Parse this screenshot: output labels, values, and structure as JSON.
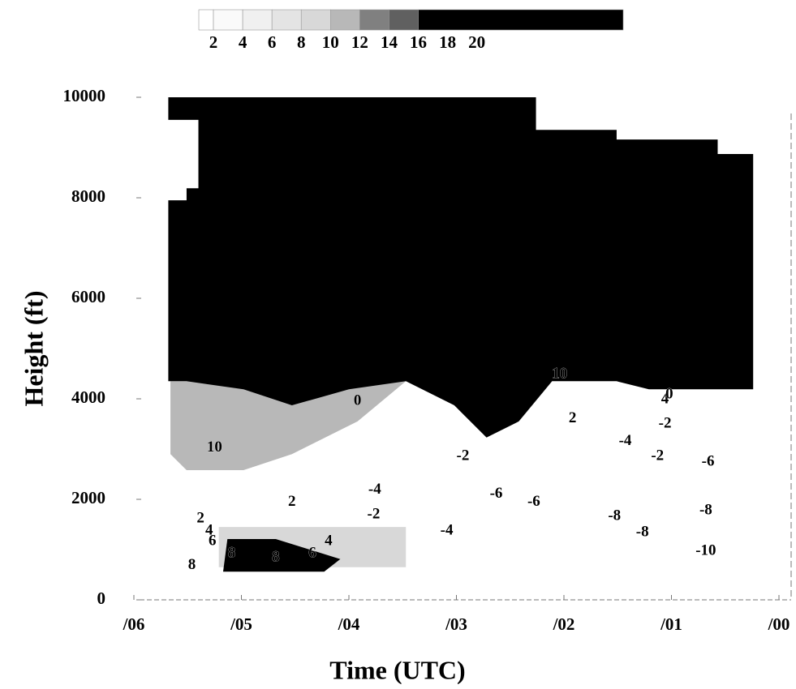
{
  "chart_data": {
    "type": "time-height",
    "x_label": "Time (UTC)",
    "y_label": "Height (ft)",
    "xlim": [
      6,
      0
    ],
    "xticks": [
      {
        "value": 6,
        "label": "/06"
      },
      {
        "value": 5,
        "label": "/05"
      },
      {
        "value": 4,
        "label": "/04"
      },
      {
        "value": 3,
        "label": "/03"
      },
      {
        "value": 2,
        "label": "/02"
      },
      {
        "value": 1,
        "label": "/01"
      },
      {
        "value": 0,
        "label": "/00"
      }
    ],
    "ylim": [
      0,
      10000
    ],
    "yticks": [
      0,
      2000,
      4000,
      6000,
      8000,
      10000
    ],
    "colorbar": {
      "lim": [
        1,
        30
      ],
      "ticks": [
        2,
        4,
        6,
        8,
        10,
        12,
        14,
        16,
        18,
        20
      ],
      "bands": [
        {
          "from": 1,
          "to": 2,
          "color": "#ffffff"
        },
        {
          "from": 2,
          "to": 4,
          "color": "#fafafa"
        },
        {
          "from": 4,
          "to": 6,
          "color": "#f0f0f0"
        },
        {
          "from": 6,
          "to": 8,
          "color": "#e4e4e4"
        },
        {
          "from": 8,
          "to": 10,
          "color": "#d8d8d8"
        },
        {
          "from": 10,
          "to": 12,
          "color": "#b8b8b8"
        },
        {
          "from": 12,
          "to": 14,
          "color": "#808080"
        },
        {
          "from": 14,
          "to": 16,
          "color": "#606060"
        },
        {
          "from": 16,
          "to": 30,
          "color": "#000000"
        }
      ]
    },
    "regions": [
      {
        "value": 10,
        "points": [
          [
            5.66,
            4350
          ],
          [
            3.47,
            4350
          ],
          [
            3.92,
            3550
          ],
          [
            4.53,
            2900
          ],
          [
            4.98,
            2580
          ],
          [
            5.51,
            2580
          ],
          [
            5.66,
            2900
          ]
        ]
      },
      {
        "value": 8,
        "points": [
          [
            5.21,
            1450
          ],
          [
            3.47,
            1450
          ],
          [
            3.47,
            650
          ],
          [
            5.21,
            650
          ]
        ]
      },
      {
        "value": 18,
        "points": [
          [
            5.13,
            1210
          ],
          [
            4.68,
            1210
          ],
          [
            4.08,
            810
          ],
          [
            4.23,
            560
          ],
          [
            5.17,
            560
          ]
        ]
      },
      {
        "value": 20,
        "points": [
          [
            5.68,
            10000
          ],
          [
            2.26,
            10000
          ],
          [
            2.26,
            9350
          ],
          [
            1.51,
            9350
          ],
          [
            1.51,
            9160
          ],
          [
            0.57,
            9160
          ],
          [
            0.57,
            8870
          ],
          [
            0.24,
            8870
          ],
          [
            0.24,
            4190
          ],
          [
            1.21,
            4190
          ],
          [
            1.51,
            4350
          ],
          [
            2.11,
            4350
          ],
          [
            2.42,
            3550
          ],
          [
            2.72,
            3230
          ],
          [
            3.02,
            3870
          ],
          [
            3.47,
            4350
          ],
          [
            4.0,
            4190
          ],
          [
            4.53,
            3870
          ],
          [
            4.98,
            4190
          ],
          [
            5.51,
            4350
          ],
          [
            5.68,
            4350
          ],
          [
            5.68,
            7950
          ],
          [
            5.51,
            7950
          ],
          [
            5.51,
            8190
          ],
          [
            5.4,
            8190
          ],
          [
            5.4,
            9550
          ],
          [
            5.68,
            9550
          ]
        ]
      }
    ],
    "contour_labels": [
      {
        "x": 0.68,
        "y": 968,
        "value": -10
      },
      {
        "x": 1.53,
        "y": 1660,
        "value": -8
      },
      {
        "x": 1.27,
        "y": 1340,
        "value": -8
      },
      {
        "x": 0.68,
        "y": 1770,
        "value": -8
      },
      {
        "x": 2.63,
        "y": 2100,
        "value": -6
      },
      {
        "x": 2.28,
        "y": 1940,
        "value": -6
      },
      {
        "x": 0.66,
        "y": 2740,
        "value": -6
      },
      {
        "x": 3.09,
        "y": 1370,
        "value": -4
      },
      {
        "x": 3.76,
        "y": 2180,
        "value": -4
      },
      {
        "x": 1.43,
        "y": 3150,
        "value": -4
      },
      {
        "x": 3.77,
        "y": 1690,
        "value": -2
      },
      {
        "x": 2.94,
        "y": 2850,
        "value": -2
      },
      {
        "x": 1.13,
        "y": 2850,
        "value": -2
      },
      {
        "x": 1.06,
        "y": 3500,
        "value": -2
      },
      {
        "x": 4.53,
        "y": 1940,
        "value": 2
      },
      {
        "x": 1.92,
        "y": 3600,
        "value": 2
      },
      {
        "x": 5.38,
        "y": 1610,
        "value": 2
      },
      {
        "x": 5.3,
        "y": 1370,
        "value": 4
      },
      {
        "x": 1.06,
        "y": 3980,
        "value": 4
      },
      {
        "x": 4.19,
        "y": 1160,
        "value": 4
      },
      {
        "x": 5.27,
        "y": 1160,
        "value": 6
      },
      {
        "x": 4.34,
        "y": 920,
        "value": 6
      },
      {
        "x": 5.46,
        "y": 680,
        "value": 8
      },
      {
        "x": 5.09,
        "y": 920,
        "value": 8
      },
      {
        "x": 4.68,
        "y": 840,
        "value": 8
      },
      {
        "x": 5.25,
        "y": 3020,
        "value": 10
      },
      {
        "x": 3.92,
        "y": 3950,
        "value": 0
      },
      {
        "x": 1.02,
        "y": 4080,
        "value": 0
      },
      {
        "x": 2.04,
        "y": 4480,
        "value": 10
      }
    ]
  }
}
